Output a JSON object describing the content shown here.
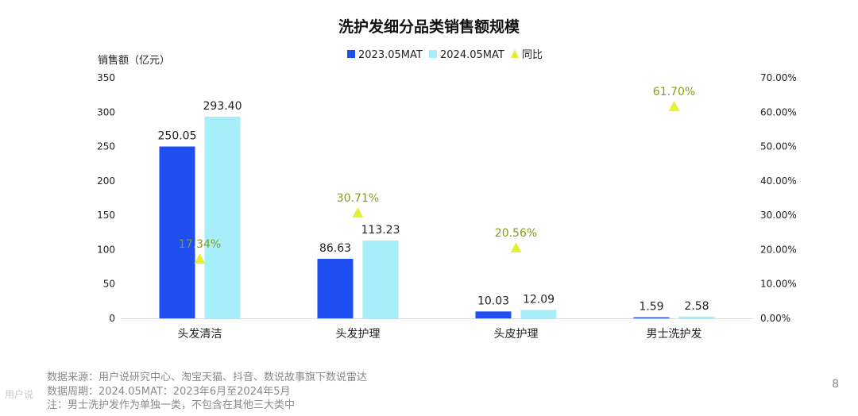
{
  "chart_data": {
    "type": "bar",
    "title": "洗护发细分品类销售额规模",
    "ylabel": "销售额（亿元）",
    "ylim": [
      0,
      350
    ],
    "y_ticks": [
      "0",
      "50",
      "100",
      "150",
      "200",
      "250",
      "300",
      "350"
    ],
    "y2lim": [
      0,
      70
    ],
    "y2_ticks": [
      "0.00%",
      "10.00%",
      "20.00%",
      "30.00%",
      "40.00%",
      "50.00%",
      "60.00%",
      "70.00%"
    ],
    "categories": [
      "头发清洁",
      "头发护理",
      "头皮护理",
      "男士洗护发"
    ],
    "series": [
      {
        "name": "2023.05MAT",
        "values": [
          250.05,
          86.63,
          10.03,
          1.59
        ],
        "labels": [
          "250.05",
          "86.63",
          "10.03",
          "1.59"
        ]
      },
      {
        "name": "2024.05MAT",
        "values": [
          293.4,
          113.23,
          12.09,
          2.58
        ],
        "labels": [
          "293.40",
          "113.23",
          "12.09",
          "2.58"
        ]
      }
    ],
    "growth": {
      "name": "同比",
      "values": [
        17.34,
        30.71,
        20.56,
        61.7
      ],
      "labels": [
        "17.34%",
        "30.71%",
        "20.56%",
        "61.70%"
      ]
    },
    "colors": {
      "s1": "#1f4ff0",
      "s2": "#a6eef9",
      "growth": "#e2f03a",
      "growth_label": "#8a9a1c"
    },
    "legend_position": "top-center",
    "grid": false
  },
  "footnotes": {
    "line1": "数据来源：用户说研究中心、淘宝天猫、抖音、数说故事旗下数说雷达",
    "line2": "数据周期：2024.05MAT：2023年6月至2024年5月",
    "line3": "注：男士洗护发作为单独一类，不包含在其他三大类中"
  },
  "page_number": "8",
  "watermark": "用户说"
}
